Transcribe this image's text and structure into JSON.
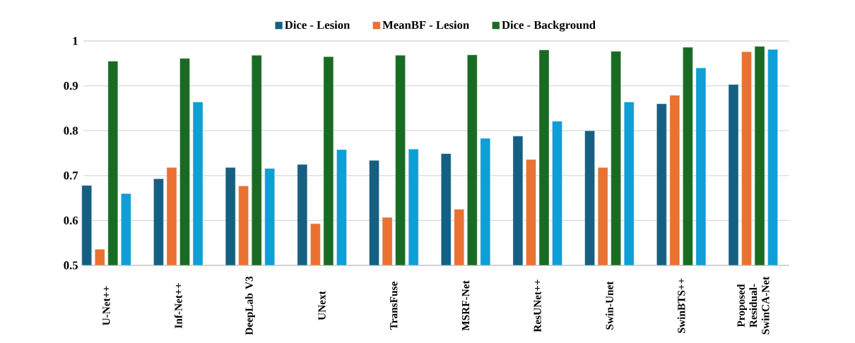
{
  "chart_data": {
    "type": "bar",
    "categories": [
      "U-Net++",
      "Inf-Net++",
      "DeepLab V3",
      "UNext",
      "TransFuse",
      "MSRF-Net",
      "ResUNet++",
      "Swin-Unet",
      "SwinBTS++",
      "Proposed Residual-SwinCA-Net"
    ],
    "series": [
      {
        "name": "Dice - Lesion",
        "color": "#156082",
        "values": [
          0.678,
          0.693,
          0.718,
          0.725,
          0.734,
          0.749,
          0.788,
          0.8,
          0.86,
          0.903
        ]
      },
      {
        "name": "MeanBF - Lesion",
        "color": "#e97132",
        "values": [
          0.536,
          0.718,
          0.677,
          0.593,
          0.607,
          0.625,
          0.736,
          0.718,
          0.879,
          0.976
        ]
      },
      {
        "name": "Dice - Background",
        "color": "#196b24",
        "values": [
          0.955,
          0.961,
          0.968,
          0.965,
          0.968,
          0.969,
          0.98,
          0.977,
          0.986,
          0.988
        ]
      },
      {
        "color": "#0f9ed5",
        "values": [
          0.66,
          0.864,
          0.716,
          0.758,
          0.759,
          0.783,
          0.821,
          0.864,
          0.94,
          0.981
        ]
      }
    ],
    "ylim": [
      0.5,
      1
    ],
    "yticks": [
      {
        "value": 0.5,
        "label": "0.5"
      },
      {
        "value": 0.6,
        "label": "0.6"
      },
      {
        "value": 0.7,
        "label": "0.7"
      },
      {
        "value": 0.8,
        "label": "0.8"
      },
      {
        "value": 0.9,
        "label": "0.9"
      },
      {
        "value": 1,
        "label": "1"
      }
    ],
    "grid": "y",
    "legend": "top"
  }
}
